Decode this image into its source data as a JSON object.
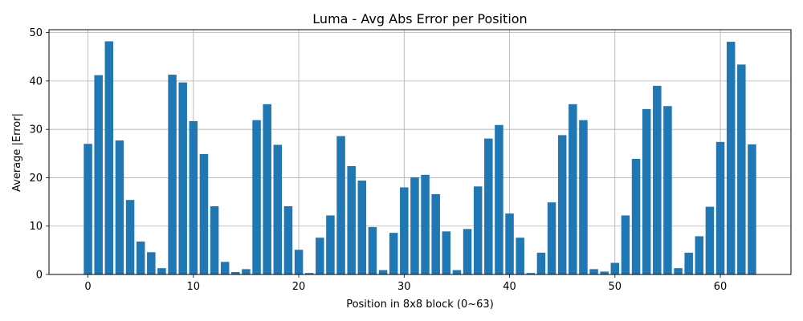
{
  "chart_data": {
    "type": "bar",
    "title": "Luma - Avg Abs Error per Position",
    "xlabel": "Position in 8x8 block (0~63)",
    "ylabel": "Average |Error|",
    "xlim": [
      -3.7,
      66.7
    ],
    "ylim": [
      0,
      50.6
    ],
    "xticks": [
      0,
      10,
      20,
      30,
      40,
      50,
      60
    ],
    "yticks": [
      0,
      10,
      20,
      30,
      40,
      50
    ],
    "grid": true,
    "bar_color": "#1f77b4",
    "x": [
      0,
      1,
      2,
      3,
      4,
      5,
      6,
      7,
      8,
      9,
      10,
      11,
      12,
      13,
      14,
      15,
      16,
      17,
      18,
      19,
      20,
      21,
      22,
      23,
      24,
      25,
      26,
      27,
      28,
      29,
      30,
      31,
      32,
      33,
      34,
      35,
      36,
      37,
      38,
      39,
      40,
      41,
      42,
      43,
      44,
      45,
      46,
      47,
      48,
      49,
      50,
      51,
      52,
      53,
      54,
      55,
      56,
      57,
      58,
      59,
      60,
      61,
      62,
      63
    ],
    "values": [
      27.0,
      41.2,
      48.2,
      27.7,
      15.4,
      6.8,
      4.6,
      1.3,
      41.3,
      39.7,
      31.7,
      24.9,
      14.1,
      2.6,
      0.5,
      1.1,
      31.9,
      35.2,
      26.8,
      14.1,
      5.1,
      0.3,
      7.6,
      12.2,
      28.6,
      22.4,
      19.4,
      9.8,
      0.9,
      8.6,
      18.0,
      20.1,
      20.6,
      16.6,
      8.9,
      0.9,
      9.4,
      18.2,
      28.1,
      30.9,
      12.6,
      7.6,
      0.3,
      4.5,
      14.9,
      28.8,
      35.2,
      31.9,
      1.1,
      0.6,
      2.4,
      12.2,
      23.9,
      34.2,
      39.0,
      34.8,
      1.3,
      4.5,
      7.9,
      14.0,
      27.4,
      48.1,
      43.4,
      26.9
    ]
  }
}
